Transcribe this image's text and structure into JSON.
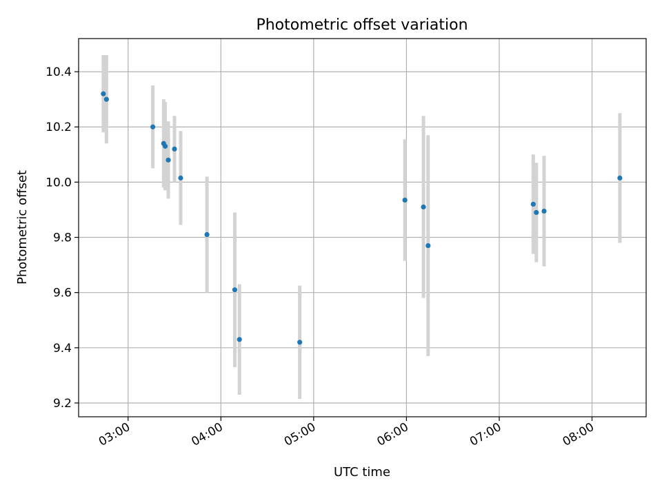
{
  "chart_data": {
    "type": "scatter",
    "title": "Photometric offset variation",
    "xlabel": "UTC time",
    "ylabel": "Photometric offset",
    "x_axis_type": "time",
    "xlim": [
      "02:28",
      "08:35"
    ],
    "ylim": [
      9.15,
      10.52
    ],
    "x_ticks": [
      "03:00",
      "04:00",
      "05:00",
      "06:00",
      "07:00",
      "08:00"
    ],
    "y_ticks": [
      "9.2",
      "9.4",
      "9.6",
      "9.8",
      "10.0",
      "10.2",
      "10.4"
    ],
    "grid": true,
    "point_color": "#1f77b4",
    "errorbar_color": "#d3d3d3",
    "points": [
      {
        "x": "02:44",
        "y": 10.32,
        "err": 0.14
      },
      {
        "x": "02:46",
        "y": 10.3,
        "err": 0.16
      },
      {
        "x": "03:16",
        "y": 10.2,
        "err": 0.15
      },
      {
        "x": "03:23",
        "y": 10.14,
        "err": 0.16
      },
      {
        "x": "03:24",
        "y": 10.13,
        "err": 0.16
      },
      {
        "x": "03:26",
        "y": 10.08,
        "err": 0.14
      },
      {
        "x": "03:30",
        "y": 10.12,
        "err": 0.12
      },
      {
        "x": "03:34",
        "y": 10.015,
        "err": 0.17
      },
      {
        "x": "03:51",
        "y": 9.81,
        "err": 0.21
      },
      {
        "x": "04:09",
        "y": 9.61,
        "err": 0.28
      },
      {
        "x": "04:12",
        "y": 9.43,
        "err": 0.2
      },
      {
        "x": "04:51",
        "y": 9.42,
        "err": 0.205
      },
      {
        "x": "05:59",
        "y": 9.935,
        "err": 0.22
      },
      {
        "x": "06:11",
        "y": 9.91,
        "err": 0.33
      },
      {
        "x": "06:14",
        "y": 9.77,
        "err": 0.4
      },
      {
        "x": "07:22",
        "y": 9.92,
        "err": 0.18
      },
      {
        "x": "07:24",
        "y": 9.89,
        "err": 0.18
      },
      {
        "x": "07:29",
        "y": 9.895,
        "err": 0.2
      },
      {
        "x": "08:18",
        "y": 10.015,
        "err": 0.235
      }
    ]
  }
}
